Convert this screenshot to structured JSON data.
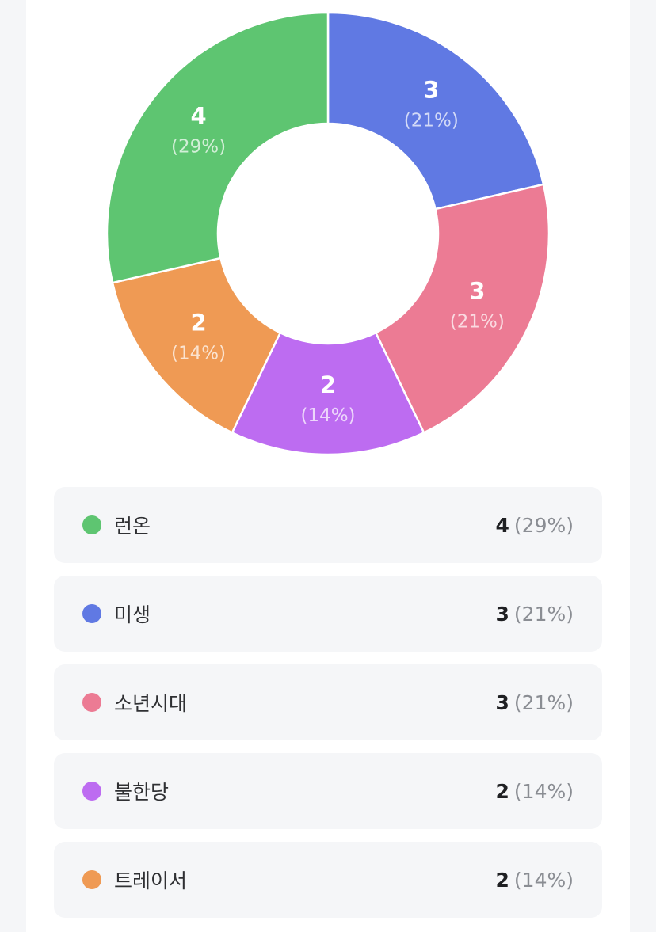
{
  "chart_data": {
    "type": "pie",
    "donut": true,
    "total": 14,
    "series": [
      {
        "name": "런온",
        "value": 4,
        "percent_label": "(29%)",
        "color": "#5ec571"
      },
      {
        "name": "미생",
        "value": 3,
        "percent_label": "(21%)",
        "color": "#6079e3"
      },
      {
        "name": "소년시대",
        "value": 3,
        "percent_label": "(21%)",
        "color": "#ec7b94"
      },
      {
        "name": "불한당",
        "value": 2,
        "percent_label": "(14%)",
        "color": "#bd6cf1"
      },
      {
        "name": "트레이서",
        "value": 2,
        "percent_label": "(14%)",
        "color": "#ef9a54"
      }
    ],
    "slice_order_clockwise_from_top": [
      "미생",
      "소년시대",
      "불한당",
      "트레이서",
      "런온"
    ]
  },
  "legend": {
    "items": [
      {
        "label": "런온",
        "count": "4",
        "pct": "(29%)",
        "color": "#5ec571"
      },
      {
        "label": "미생",
        "count": "3",
        "pct": "(21%)",
        "color": "#6079e3"
      },
      {
        "label": "소년시대",
        "count": "3",
        "pct": "(21%)",
        "color": "#ec7b94"
      },
      {
        "label": "불한당",
        "count": "2",
        "pct": "(14%)",
        "color": "#bd6cf1"
      },
      {
        "label": "트레이서",
        "count": "2",
        "pct": "(14%)",
        "color": "#ef9a54"
      }
    ]
  }
}
